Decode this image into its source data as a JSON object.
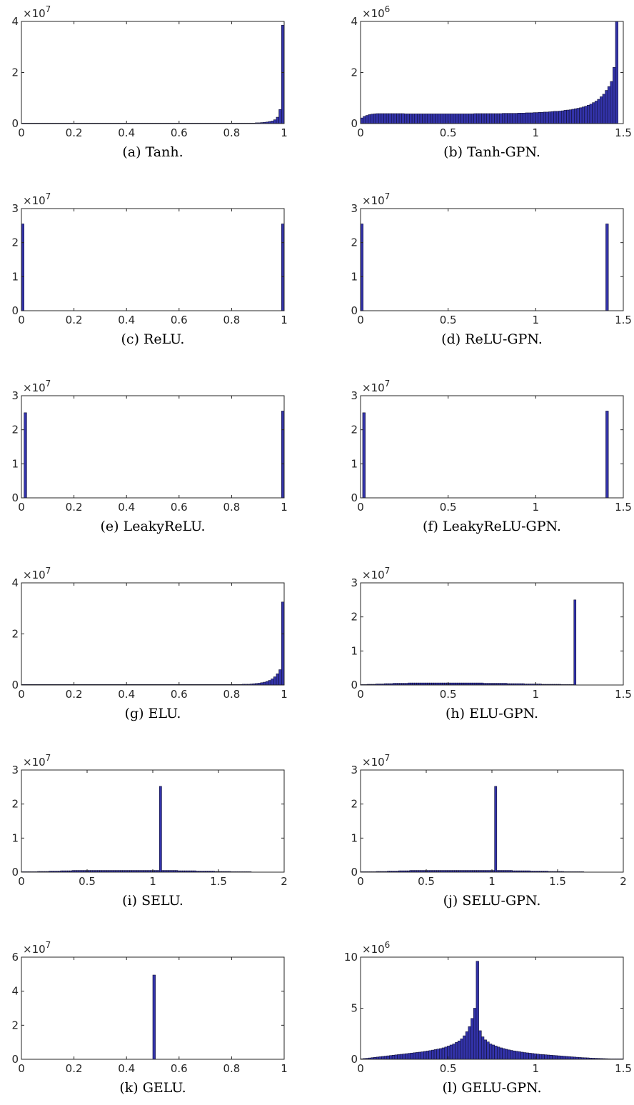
{
  "chart_data": [
    {
      "type": "bar",
      "caption": "(a) Tanh.",
      "xlim": [
        0,
        1
      ],
      "xticks": [
        "0",
        "0.2",
        "0.4",
        "0.6",
        "0.8",
        "1"
      ],
      "ylim": [
        0,
        4
      ],
      "yticks": [
        "0",
        "2",
        "4"
      ],
      "y_multiplier_exp": "7",
      "bins": {
        "start": 0,
        "width": 0.01,
        "count": 100
      },
      "values": [
        0.02,
        0.02,
        0.02,
        0.02,
        0.02,
        0.02,
        0.02,
        0.02,
        0.02,
        0.02,
        0.02,
        0.02,
        0.02,
        0.02,
        0.02,
        0.02,
        0.02,
        0.02,
        0.02,
        0.02,
        0.02,
        0.02,
        0.02,
        0.02,
        0.02,
        0.02,
        0.02,
        0.02,
        0.02,
        0.02,
        0.02,
        0.02,
        0.02,
        0.02,
        0.02,
        0.02,
        0.02,
        0.02,
        0.02,
        0.02,
        0.02,
        0.02,
        0.02,
        0.02,
        0.02,
        0.02,
        0.02,
        0.02,
        0.02,
        0.02,
        0.02,
        0.02,
        0.02,
        0.02,
        0.02,
        0.02,
        0.02,
        0.02,
        0.02,
        0.02,
        0.02,
        0.02,
        0.02,
        0.02,
        0.02,
        0.02,
        0.02,
        0.02,
        0.02,
        0.02,
        0.02,
        0.02,
        0.02,
        0.02,
        0.02,
        0.02,
        0.02,
        0.02,
        0.02,
        0.02,
        0.02,
        0.02,
        0.02,
        0.02,
        0.02,
        0.02,
        0.02,
        0.02,
        0.02,
        0.03,
        0.03,
        0.04,
        0.05,
        0.06,
        0.08,
        0.1,
        0.15,
        0.25,
        0.55,
        3.85
      ]
    },
    {
      "type": "bar",
      "caption": "(b) Tanh-GPN.",
      "xlim": [
        0,
        1.5
      ],
      "xticks": [
        "0",
        "0.5",
        "1",
        "1.5"
      ],
      "ylim": [
        0,
        4
      ],
      "yticks": [
        "0",
        "2",
        "4"
      ],
      "y_multiplier_exp": "6",
      "bins": {
        "start": 0,
        "width": 0.0147,
        "count": 100
      },
      "values": [
        0.22,
        0.28,
        0.32,
        0.35,
        0.37,
        0.38,
        0.39,
        0.39,
        0.39,
        0.39,
        0.39,
        0.39,
        0.39,
        0.39,
        0.39,
        0.39,
        0.39,
        0.38,
        0.38,
        0.38,
        0.38,
        0.38,
        0.38,
        0.38,
        0.38,
        0.38,
        0.38,
        0.38,
        0.38,
        0.38,
        0.38,
        0.38,
        0.38,
        0.38,
        0.38,
        0.38,
        0.38,
        0.38,
        0.38,
        0.38,
        0.38,
        0.38,
        0.38,
        0.38,
        0.39,
        0.39,
        0.39,
        0.39,
        0.39,
        0.39,
        0.39,
        0.39,
        0.39,
        0.39,
        0.39,
        0.4,
        0.4,
        0.4,
        0.4,
        0.4,
        0.4,
        0.41,
        0.41,
        0.41,
        0.42,
        0.42,
        0.42,
        0.43,
        0.43,
        0.44,
        0.44,
        0.45,
        0.45,
        0.46,
        0.47,
        0.48,
        0.48,
        0.49,
        0.5,
        0.52,
        0.53,
        0.54,
        0.56,
        0.58,
        0.6,
        0.62,
        0.65,
        0.68,
        0.72,
        0.76,
        0.82,
        0.88,
        0.95,
        1.05,
        1.15,
        1.3,
        1.45,
        1.65,
        2.2,
        4.0
      ]
    },
    {
      "type": "bar",
      "caption": "(c) ReLU.",
      "xlim": [
        0,
        1
      ],
      "xticks": [
        "0",
        "0.2",
        "0.4",
        "0.6",
        "0.8",
        "1"
      ],
      "ylim": [
        0,
        3
      ],
      "yticks": [
        "0",
        "1",
        "2",
        "3"
      ],
      "y_multiplier_exp": "7",
      "bars": [
        {
          "x": 0.0,
          "w": 0.01,
          "v": 2.55
        },
        {
          "x": 0.99,
          "w": 0.01,
          "v": 2.55
        }
      ]
    },
    {
      "type": "bar",
      "caption": "(d) ReLU-GPN.",
      "xlim": [
        0,
        1.5
      ],
      "xticks": [
        "0",
        "0.5",
        "1",
        "1.5"
      ],
      "ylim": [
        0,
        3
      ],
      "yticks": [
        "0",
        "1",
        "2",
        "3"
      ],
      "y_multiplier_exp": "7",
      "bars": [
        {
          "x": 0.0,
          "w": 0.015,
          "v": 2.55
        },
        {
          "x": 1.4,
          "w": 0.015,
          "v": 2.55
        }
      ]
    },
    {
      "type": "bar",
      "caption": "(e) LeakyReLU.",
      "xlim": [
        0,
        1
      ],
      "xticks": [
        "0",
        "0.2",
        "0.4",
        "0.6",
        "0.8",
        "1"
      ],
      "ylim": [
        0,
        3
      ],
      "yticks": [
        "0",
        "1",
        "2",
        "3"
      ],
      "y_multiplier_exp": "7",
      "bars": [
        {
          "x": 0.01,
          "w": 0.01,
          "v": 2.5
        },
        {
          "x": 0.99,
          "w": 0.01,
          "v": 2.55
        }
      ]
    },
    {
      "type": "bar",
      "caption": "(f) LeakyReLU-GPN.",
      "xlim": [
        0,
        1.5
      ],
      "xticks": [
        "0",
        "0.5",
        "1",
        "1.5"
      ],
      "ylim": [
        0,
        3
      ],
      "yticks": [
        "0",
        "1",
        "2",
        "3"
      ],
      "y_multiplier_exp": "7",
      "bars": [
        {
          "x": 0.012,
          "w": 0.015,
          "v": 2.5
        },
        {
          "x": 1.4,
          "w": 0.015,
          "v": 2.55
        }
      ]
    },
    {
      "type": "bar",
      "caption": "(g) ELU.",
      "xlim": [
        0,
        1
      ],
      "xticks": [
        "0",
        "0.2",
        "0.4",
        "0.6",
        "0.8",
        "1"
      ],
      "ylim": [
        0,
        4
      ],
      "yticks": [
        "0",
        "2",
        "4"
      ],
      "y_multiplier_exp": "7",
      "bins": {
        "start": 0,
        "width": 0.01,
        "count": 100
      },
      "values": [
        0.02,
        0.02,
        0.02,
        0.02,
        0.02,
        0.02,
        0.02,
        0.02,
        0.02,
        0.02,
        0.02,
        0.02,
        0.02,
        0.02,
        0.02,
        0.02,
        0.02,
        0.02,
        0.02,
        0.02,
        0.02,
        0.02,
        0.02,
        0.02,
        0.02,
        0.02,
        0.02,
        0.02,
        0.02,
        0.02,
        0.02,
        0.02,
        0.02,
        0.02,
        0.02,
        0.02,
        0.02,
        0.02,
        0.02,
        0.02,
        0.02,
        0.02,
        0.02,
        0.02,
        0.02,
        0.02,
        0.02,
        0.02,
        0.02,
        0.02,
        0.02,
        0.02,
        0.02,
        0.02,
        0.02,
        0.02,
        0.02,
        0.02,
        0.02,
        0.02,
        0.02,
        0.02,
        0.02,
        0.02,
        0.02,
        0.02,
        0.02,
        0.02,
        0.02,
        0.02,
        0.02,
        0.02,
        0.02,
        0.02,
        0.02,
        0.02,
        0.02,
        0.02,
        0.02,
        0.02,
        0.02,
        0.02,
        0.02,
        0.02,
        0.03,
        0.03,
        0.03,
        0.04,
        0.05,
        0.06,
        0.07,
        0.09,
        0.11,
        0.14,
        0.18,
        0.24,
        0.32,
        0.44,
        0.6,
        3.25
      ]
    },
    {
      "type": "bar",
      "caption": "(h) ELU-GPN.",
      "xlim": [
        0,
        1.5
      ],
      "xticks": [
        "0",
        "0.5",
        "1",
        "1.5"
      ],
      "ylim": [
        0,
        3
      ],
      "yticks": [
        "0",
        "1",
        "2",
        "3"
      ],
      "y_multiplier_exp": "7",
      "bins": {
        "start": 0,
        "width": 0.0123,
        "count": 100
      },
      "values": [
        0.01,
        0.01,
        0.01,
        0.02,
        0.02,
        0.02,
        0.02,
        0.03,
        0.03,
        0.03,
        0.03,
        0.04,
        0.04,
        0.04,
        0.04,
        0.05,
        0.05,
        0.05,
        0.05,
        0.05,
        0.05,
        0.05,
        0.06,
        0.06,
        0.06,
        0.06,
        0.06,
        0.06,
        0.06,
        0.06,
        0.06,
        0.06,
        0.06,
        0.06,
        0.06,
        0.06,
        0.06,
        0.06,
        0.06,
        0.06,
        0.06,
        0.06,
        0.06,
        0.06,
        0.06,
        0.06,
        0.06,
        0.06,
        0.06,
        0.06,
        0.06,
        0.06,
        0.06,
        0.06,
        0.06,
        0.06,
        0.06,
        0.05,
        0.05,
        0.05,
        0.05,
        0.05,
        0.05,
        0.05,
        0.05,
        0.05,
        0.05,
        0.05,
        0.04,
        0.04,
        0.04,
        0.04,
        0.04,
        0.04,
        0.04,
        0.04,
        0.03,
        0.03,
        0.03,
        0.03,
        0.03,
        0.03,
        0.03,
        0.03,
        0.02,
        0.02,
        0.02,
        0.02,
        0.02,
        0.02,
        0.02,
        0.02,
        0.02,
        0.01,
        0.01,
        0.01,
        0.01,
        0.01,
        0.01,
        2.5
      ]
    },
    {
      "type": "bar",
      "caption": "(i) SELU.",
      "xlim": [
        0,
        2
      ],
      "xticks": [
        "0",
        "0.5",
        "1",
        "1.5",
        "2"
      ],
      "ylim": [
        0,
        3
      ],
      "yticks": [
        "0",
        "1",
        "2",
        "3"
      ],
      "y_multiplier_exp": "7",
      "bins": {
        "start": 0,
        "width": 0.0175,
        "count": 100
      },
      "values": [
        0.0,
        0.0,
        0.01,
        0.01,
        0.01,
        0.01,
        0.01,
        0.02,
        0.02,
        0.02,
        0.02,
        0.02,
        0.03,
        0.03,
        0.03,
        0.03,
        0.03,
        0.04,
        0.04,
        0.04,
        0.04,
        0.04,
        0.05,
        0.05,
        0.05,
        0.05,
        0.05,
        0.05,
        0.05,
        0.05,
        0.05,
        0.05,
        0.05,
        0.05,
        0.05,
        0.05,
        0.05,
        0.05,
        0.05,
        0.05,
        0.05,
        0.05,
        0.05,
        0.05,
        0.05,
        0.05,
        0.05,
        0.05,
        0.05,
        0.05,
        0.05,
        0.05,
        0.05,
        0.05,
        0.05,
        0.05,
        0.05,
        0.05,
        0.05,
        0.05,
        2.52,
        0.05,
        0.05,
        0.05,
        0.05,
        0.05,
        0.05,
        0.05,
        0.04,
        0.04,
        0.04,
        0.04,
        0.04,
        0.04,
        0.04,
        0.04,
        0.03,
        0.03,
        0.03,
        0.03,
        0.03,
        0.03,
        0.03,
        0.03,
        0.02,
        0.02,
        0.02,
        0.02,
        0.02,
        0.02,
        0.02,
        0.01,
        0.01,
        0.01,
        0.01,
        0.01,
        0.01,
        0.01,
        0.0,
        0.0
      ]
    },
    {
      "type": "bar",
      "caption": "(j) SELU-GPN.",
      "xlim": [
        0,
        2
      ],
      "xticks": [
        "0",
        "0.5",
        "1",
        "1.5",
        "2"
      ],
      "ylim": [
        0,
        3
      ],
      "yticks": [
        "0",
        "1",
        "2",
        "3"
      ],
      "y_multiplier_exp": "7",
      "bins": {
        "start": 0,
        "width": 0.017,
        "count": 100
      },
      "values": [
        0.0,
        0.0,
        0.01,
        0.01,
        0.01,
        0.01,
        0.01,
        0.02,
        0.02,
        0.02,
        0.02,
        0.02,
        0.03,
        0.03,
        0.03,
        0.03,
        0.03,
        0.04,
        0.04,
        0.04,
        0.04,
        0.04,
        0.05,
        0.05,
        0.05,
        0.05,
        0.05,
        0.05,
        0.05,
        0.05,
        0.05,
        0.05,
        0.05,
        0.05,
        0.05,
        0.05,
        0.05,
        0.05,
        0.05,
        0.05,
        0.05,
        0.05,
        0.05,
        0.05,
        0.05,
        0.05,
        0.05,
        0.05,
        0.05,
        0.05,
        0.05,
        0.05,
        0.05,
        0.05,
        0.05,
        0.05,
        0.05,
        0.05,
        0.05,
        0.05,
        2.52,
        0.05,
        0.05,
        0.05,
        0.05,
        0.05,
        0.05,
        0.05,
        0.04,
        0.04,
        0.04,
        0.04,
        0.04,
        0.04,
        0.04,
        0.04,
        0.03,
        0.03,
        0.03,
        0.03,
        0.03,
        0.03,
        0.03,
        0.03,
        0.02,
        0.02,
        0.02,
        0.02,
        0.02,
        0.02,
        0.02,
        0.01,
        0.01,
        0.01,
        0.01,
        0.01,
        0.01,
        0.01,
        0.0,
        0.0
      ]
    },
    {
      "type": "bar",
      "caption": "(k) GELU.",
      "xlim": [
        0,
        1
      ],
      "xticks": [
        "0",
        "0.2",
        "0.4",
        "0.6",
        "0.8",
        "1"
      ],
      "ylim": [
        0,
        6
      ],
      "yticks": [
        "0",
        "2",
        "4",
        "6"
      ],
      "y_multiplier_exp": "7",
      "bars": [
        {
          "x": 0.5,
          "w": 0.01,
          "v": 4.95
        }
      ]
    },
    {
      "type": "bar",
      "caption": "(l) GELU-GPN.",
      "xlim": [
        0,
        1.5
      ],
      "xticks": [
        "0",
        "0.5",
        "1",
        "1.5"
      ],
      "ylim": [
        0,
        10
      ],
      "yticks": [
        "0",
        "5",
        "10"
      ],
      "y_multiplier_exp": "6",
      "bins": {
        "start": 0,
        "width": 0.015,
        "count": 100
      },
      "values": [
        0.05,
        0.08,
        0.1,
        0.13,
        0.16,
        0.19,
        0.22,
        0.25,
        0.28,
        0.31,
        0.34,
        0.37,
        0.4,
        0.43,
        0.46,
        0.49,
        0.52,
        0.55,
        0.58,
        0.61,
        0.64,
        0.67,
        0.7,
        0.73,
        0.77,
        0.81,
        0.85,
        0.9,
        0.95,
        1.0,
        1.05,
        1.12,
        1.2,
        1.3,
        1.4,
        1.5,
        1.65,
        1.8,
        2.0,
        2.3,
        2.7,
        3.2,
        4.0,
        5.0,
        9.6,
        2.8,
        2.2,
        1.9,
        1.7,
        1.5,
        1.4,
        1.3,
        1.2,
        1.12,
        1.05,
        0.98,
        0.92,
        0.87,
        0.82,
        0.78,
        0.74,
        0.7,
        0.66,
        0.63,
        0.6,
        0.57,
        0.54,
        0.51,
        0.48,
        0.46,
        0.44,
        0.42,
        0.4,
        0.38,
        0.36,
        0.34,
        0.32,
        0.3,
        0.28,
        0.26,
        0.24,
        0.22,
        0.2,
        0.18,
        0.16,
        0.15,
        0.14,
        0.12,
        0.11,
        0.1,
        0.09,
        0.08,
        0.07,
        0.06,
        0.05,
        0.04,
        0.03,
        0.02,
        0.01,
        0.01
      ]
    }
  ]
}
